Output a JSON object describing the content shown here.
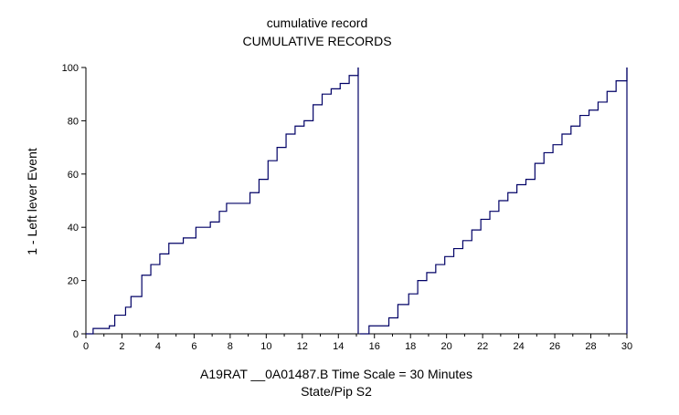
{
  "chart_data": {
    "type": "line",
    "title": "cumulative record",
    "subtitle": "CUMULATIVE RECORDS",
    "ylabel": "1 - Left lever  Event",
    "xlabel": "A19RAT __0A01487.B   Time Scale = 30 Minutes",
    "xlabel2": "State/Pip S2",
    "xlim": [
      0,
      30
    ],
    "ylim": [
      0,
      100
    ],
    "x_ticks": [
      "0",
      "2",
      "4",
      "6",
      "8",
      "10",
      "12",
      "14",
      "16",
      "18",
      "20",
      "22",
      "24",
      "26",
      "28",
      "30"
    ],
    "y_ticks": [
      "0",
      "20",
      "40",
      "60",
      "80",
      "100"
    ],
    "reset_x": 15.2,
    "line_color": "#000066",
    "series": [
      {
        "x": [
          0,
          0.4,
          1.3,
          1.6,
          2.2,
          2.5,
          3.1,
          3.6,
          4.1,
          4.6,
          5.4,
          6.1,
          6.9,
          7.4,
          7.8,
          8.6,
          9.1,
          9.6,
          10.1,
          10.6,
          11.1,
          11.6,
          12.1,
          12.6,
          13.1,
          13.6,
          14.1,
          14.6,
          15.1
        ],
        "y": [
          0,
          2,
          3,
          7,
          10,
          14,
          22,
          26,
          30,
          34,
          36,
          40,
          42,
          46,
          49,
          49,
          53,
          58,
          65,
          70,
          75,
          78,
          80,
          86,
          90,
          92,
          94,
          97,
          100
        ]
      },
      {
        "x": [
          15.2,
          15.7,
          16.2,
          16.8,
          17.3,
          17.9,
          18.4,
          18.9,
          19.4,
          19.9,
          20.4,
          20.9,
          21.4,
          21.9,
          22.4,
          22.9,
          23.4,
          23.9,
          24.4,
          24.9,
          25.4,
          25.9,
          26.4,
          26.9,
          27.4,
          27.9,
          28.4,
          28.9,
          29.4,
          30.0
        ],
        "y": [
          0,
          3,
          3,
          6,
          11,
          15,
          20,
          23,
          26,
          29,
          32,
          35,
          39,
          43,
          46,
          50,
          53,
          56,
          58,
          64,
          68,
          71,
          75,
          78,
          82,
          84,
          87,
          91,
          95,
          100
        ]
      }
    ]
  }
}
